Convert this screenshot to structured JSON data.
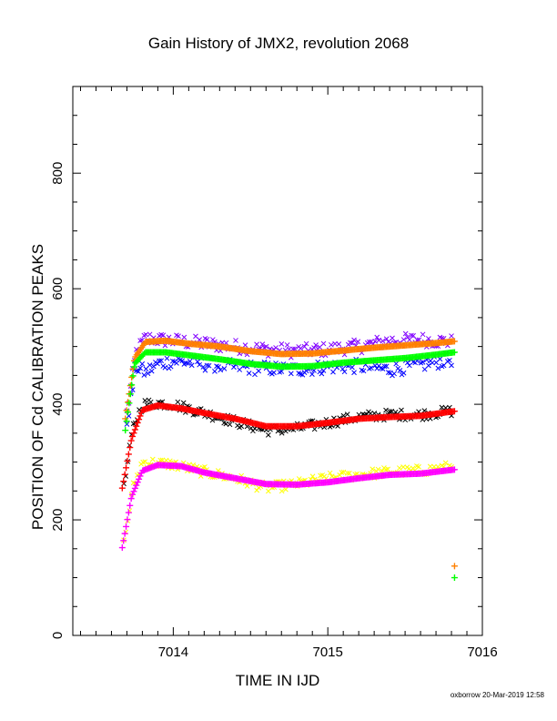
{
  "chart_data": {
    "type": "scatter",
    "title": "Gain History of JMX2, revolution 2068",
    "xlabel": "TIME IN IJD",
    "ylabel": "POSITION OF Cd CALIBRATION PEAKS",
    "xlim": [
      7013.35,
      7016.0
    ],
    "ylim": [
      0,
      950
    ],
    "x_ticks": [
      7014,
      7015,
      7016
    ],
    "y_ticks": [
      0,
      200,
      400,
      600,
      800
    ],
    "grid": false,
    "legend": "none",
    "series": [
      {
        "marker": "x",
        "color": "#8000ff",
        "scatter": 12,
        "points": [
          [
            7013.7,
            385
          ],
          [
            7013.76,
            490
          ],
          [
            7013.82,
            515
          ],
          [
            7013.9,
            512
          ],
          [
            7014.0,
            510
          ],
          [
            7014.2,
            505
          ],
          [
            7014.4,
            500
          ],
          [
            7014.6,
            495
          ],
          [
            7014.8,
            492
          ],
          [
            7015.0,
            495
          ],
          [
            7015.2,
            500
          ],
          [
            7015.4,
            510
          ],
          [
            7015.6,
            512
          ],
          [
            7015.8,
            508
          ]
        ]
      },
      {
        "marker": "x",
        "color": "#0000ff",
        "scatter": 12,
        "points": [
          [
            7013.7,
            370
          ],
          [
            7013.76,
            465
          ],
          [
            7013.82,
            455
          ],
          [
            7013.9,
            470
          ],
          [
            7014.0,
            475
          ],
          [
            7014.2,
            470
          ],
          [
            7014.4,
            465
          ],
          [
            7014.6,
            462
          ],
          [
            7014.8,
            460
          ],
          [
            7015.0,
            465
          ],
          [
            7015.2,
            466
          ],
          [
            7015.4,
            460
          ],
          [
            7015.6,
            468
          ],
          [
            7015.8,
            478
          ]
        ]
      },
      {
        "marker": "x",
        "color": "#000000",
        "scatter": 9,
        "points": [
          [
            7013.68,
            255
          ],
          [
            7013.74,
            360
          ],
          [
            7013.8,
            400
          ],
          [
            7013.9,
            402
          ],
          [
            7014.0,
            400
          ],
          [
            7014.2,
            385
          ],
          [
            7014.4,
            370
          ],
          [
            7014.6,
            355
          ],
          [
            7014.8,
            358
          ],
          [
            7015.0,
            368
          ],
          [
            7015.2,
            378
          ],
          [
            7015.4,
            382
          ],
          [
            7015.6,
            382
          ],
          [
            7015.8,
            388
          ]
        ]
      },
      {
        "marker": "x",
        "color": "#ffff00",
        "scatter": 9,
        "points": [
          [
            7013.68,
            160
          ],
          [
            7013.74,
            255
          ],
          [
            7013.8,
            300
          ],
          [
            7013.9,
            298
          ],
          [
            7014.0,
            296
          ],
          [
            7014.2,
            283
          ],
          [
            7014.4,
            272
          ],
          [
            7014.6,
            255
          ],
          [
            7014.8,
            262
          ],
          [
            7015.0,
            272
          ],
          [
            7015.2,
            278
          ],
          [
            7015.4,
            283
          ],
          [
            7015.6,
            285
          ],
          [
            7015.8,
            292
          ]
        ]
      },
      {
        "marker": "+",
        "color": "#ff8000",
        "scatter": 0,
        "points": [
          [
            7013.69,
            375
          ],
          [
            7013.75,
            480
          ],
          [
            7013.82,
            508
          ],
          [
            7013.95,
            510
          ],
          [
            7014.1,
            505
          ],
          [
            7014.3,
            500
          ],
          [
            7014.5,
            492
          ],
          [
            7014.7,
            487
          ],
          [
            7014.9,
            488
          ],
          [
            7015.1,
            493
          ],
          [
            7015.3,
            498
          ],
          [
            7015.5,
            502
          ],
          [
            7015.7,
            506
          ],
          [
            7015.82,
            509
          ]
        ]
      },
      {
        "marker": "+",
        "color": "#00ff00",
        "scatter": 0,
        "points": [
          [
            7013.69,
            355
          ],
          [
            7013.75,
            470
          ],
          [
            7013.82,
            490
          ],
          [
            7013.95,
            490
          ],
          [
            7014.1,
            485
          ],
          [
            7014.3,
            478
          ],
          [
            7014.5,
            470
          ],
          [
            7014.7,
            465
          ],
          [
            7014.9,
            466
          ],
          [
            7015.1,
            472
          ],
          [
            7015.3,
            476
          ],
          [
            7015.5,
            480
          ],
          [
            7015.7,
            486
          ],
          [
            7015.82,
            490
          ]
        ]
      },
      {
        "marker": "+",
        "color": "#ff0000",
        "scatter": 0,
        "points": [
          [
            7013.67,
            255
          ],
          [
            7013.73,
            340
          ],
          [
            7013.8,
            390
          ],
          [
            7013.9,
            398
          ],
          [
            7014.05,
            393
          ],
          [
            7014.2,
            385
          ],
          [
            7014.4,
            375
          ],
          [
            7014.6,
            362
          ],
          [
            7014.8,
            362
          ],
          [
            7015.0,
            368
          ],
          [
            7015.2,
            375
          ],
          [
            7015.4,
            378
          ],
          [
            7015.6,
            380
          ],
          [
            7015.82,
            388
          ]
        ]
      },
      {
        "marker": "+",
        "color": "#ff00ff",
        "scatter": 0,
        "points": [
          [
            7013.67,
            152
          ],
          [
            7013.73,
            240
          ],
          [
            7013.8,
            285
          ],
          [
            7013.9,
            295
          ],
          [
            7014.05,
            293
          ],
          [
            7014.2,
            282
          ],
          [
            7014.4,
            272
          ],
          [
            7014.6,
            262
          ],
          [
            7014.8,
            261
          ],
          [
            7015.0,
            265
          ],
          [
            7015.2,
            272
          ],
          [
            7015.4,
            278
          ],
          [
            7015.6,
            280
          ],
          [
            7015.82,
            287
          ]
        ]
      }
    ],
    "extra_points": [
      {
        "marker": "+",
        "color": "#ff8000",
        "x": 7015.82,
        "y": 120
      },
      {
        "marker": "+",
        "color": "#00ff00",
        "x": 7015.82,
        "y": 100
      }
    ]
  },
  "footer": "oxborrow 20-Mar-2019 12:58"
}
